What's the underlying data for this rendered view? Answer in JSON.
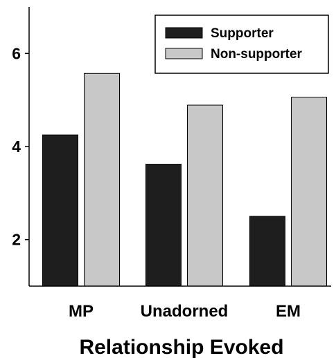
{
  "chart_data": {
    "type": "bar",
    "title": "",
    "xlabel": "Relationship Evoked",
    "ylabel": "",
    "categories": [
      "MP",
      "Unadorned",
      "EM"
    ],
    "series": [
      {
        "name": "Supporter",
        "color": "#1e1e1e",
        "values": [
          4.25,
          3.62,
          2.5
        ]
      },
      {
        "name": "Non-supporter",
        "color": "#c8c8c8",
        "values": [
          5.57,
          4.89,
          5.06
        ]
      }
    ],
    "ylim": [
      1,
      7
    ],
    "yticks": [
      2,
      4,
      6
    ],
    "grid": false,
    "legend_position": "top-right"
  }
}
